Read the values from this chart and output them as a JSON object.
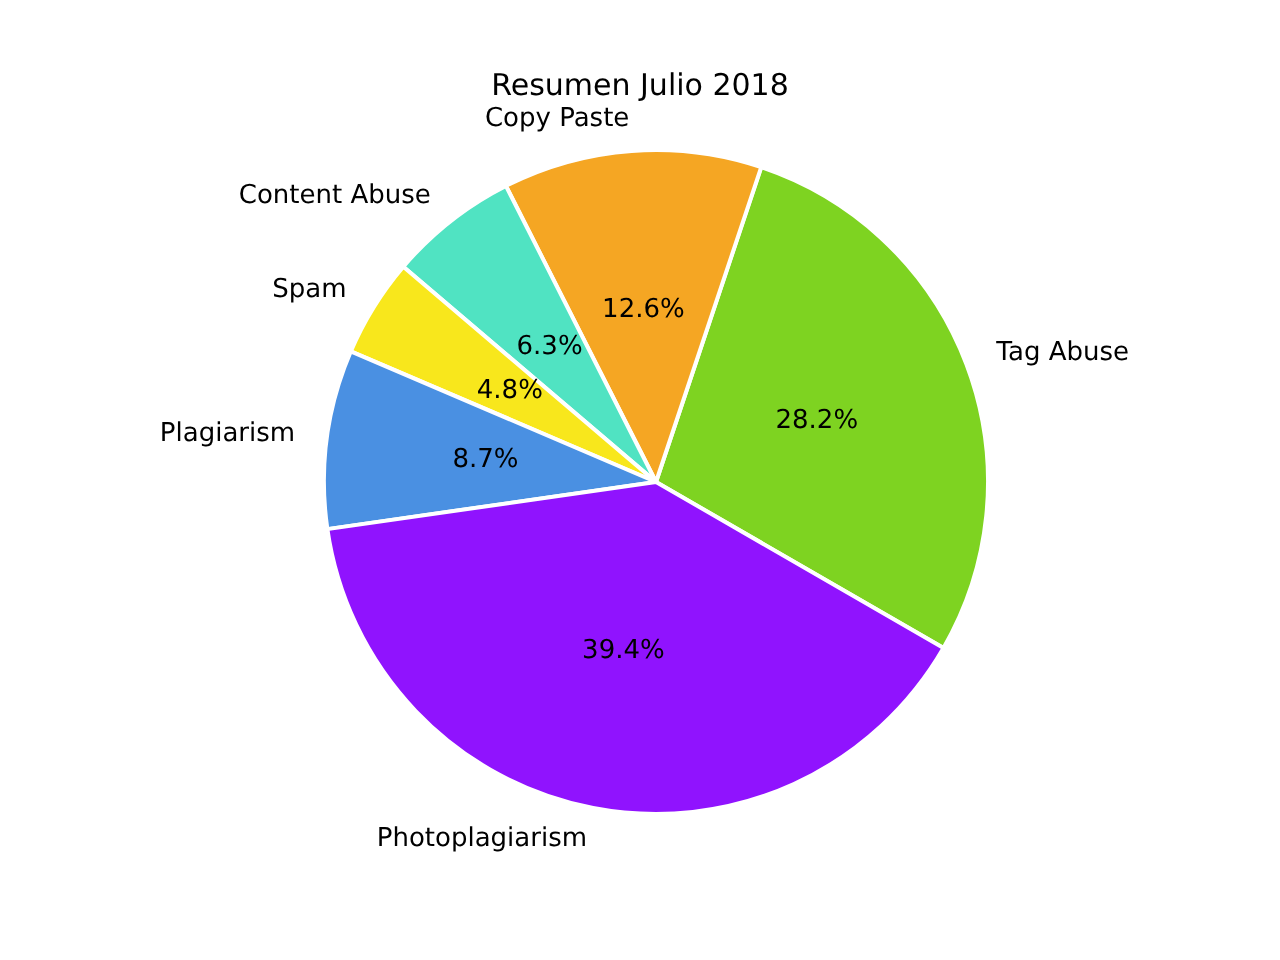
{
  "chart_data": {
    "type": "pie",
    "title": "Resumen Julio 2018",
    "categories": [
      "Tag Abuse",
      "Copy Paste",
      "Content Abuse",
      "Spam",
      "Plagiarism",
      "Photoplagiarism"
    ],
    "values": [
      28.2,
      12.6,
      6.3,
      4.8,
      8.7,
      39.4
    ],
    "value_labels": [
      "28.2%",
      "12.6%",
      "6.3%",
      "4.8%",
      "8.7%",
      "39.4%"
    ],
    "colors": [
      "#7ed321",
      "#f5a623",
      "#50e3c2",
      "#f8e71c",
      "#4a90e2",
      "#9013fe"
    ]
  }
}
